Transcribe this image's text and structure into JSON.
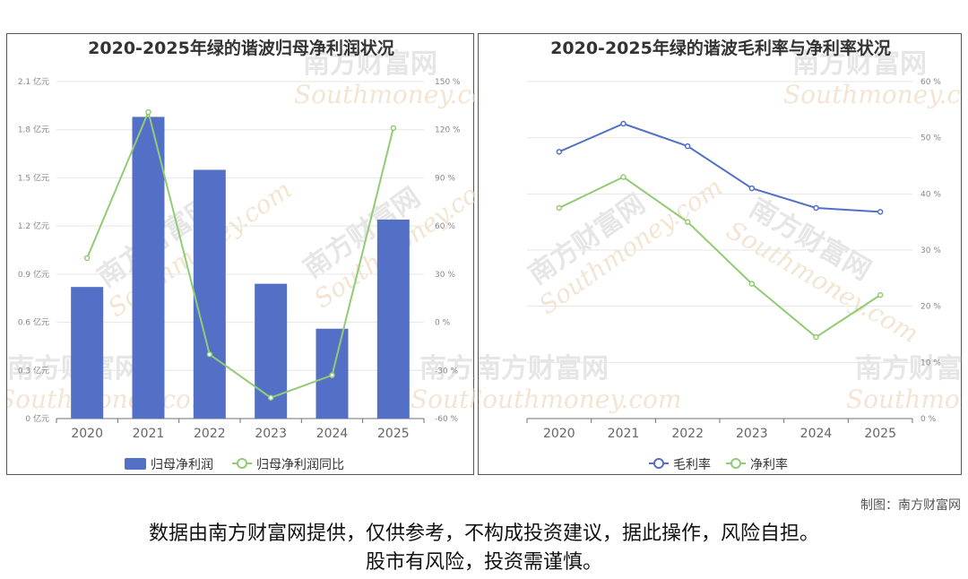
{
  "chart_data": [
    {
      "type": "bar",
      "title": "2020-2025年绿的谐波归母净利润状况",
      "categories": [
        "2020",
        "2021",
        "2022",
        "2023",
        "2024",
        "2025"
      ],
      "series": [
        {
          "name": "归母净利润",
          "values": [
            0.82,
            1.88,
            1.55,
            0.84,
            0.56,
            1.24
          ],
          "color": "#5470c6"
        },
        {
          "name": "归母净利润同比",
          "values": [
            40,
            131,
            -20,
            -47,
            -33,
            121
          ],
          "axis": "right",
          "type": "line",
          "color": "#91cc75"
        }
      ],
      "y_left": {
        "ticks": [
          "2.1 亿元",
          "1.8 亿元",
          "1.5 亿元",
          "1.2 亿元",
          "0.9 亿元",
          "0.6 亿元",
          "0.3 亿元",
          "0 亿元"
        ],
        "ylim": [
          0,
          2.1
        ]
      },
      "y_right": {
        "ticks": [
          "150 %",
          "120 %",
          "90 %",
          "60 %",
          "30 %",
          "0 %",
          "-30 %",
          "-60 %"
        ],
        "ylim": [
          -60,
          150
        ]
      },
      "legend_position": "bottom"
    },
    {
      "type": "line",
      "title": "2020-2025年绿的谐波毛利率与净利率状况",
      "categories": [
        "2020",
        "2021",
        "2022",
        "2023",
        "2024",
        "2025"
      ],
      "series": [
        {
          "name": "毛利率",
          "values": [
            47.5,
            52.5,
            48.5,
            41,
            37.5,
            36.8
          ],
          "color": "#5470c6"
        },
        {
          "name": "净利率",
          "values": [
            37.5,
            43,
            35,
            24,
            14.5,
            22
          ],
          "color": "#91cc75"
        }
      ],
      "y_right": {
        "ticks": [
          "60 %",
          "50 %",
          "40 %",
          "30 %",
          "20 %",
          "10 %",
          "0 %"
        ],
        "ylim": [
          0,
          60
        ]
      },
      "legend_position": "bottom"
    }
  ],
  "watermark": {
    "cn": "南方财富网",
    "en": "Southmoney.com"
  },
  "credit": "制图：南方财富网",
  "disclaimer": {
    "line1": "数据由南方财富网提供，仅供参考，不构成投资建议，据此操作，风险自担。",
    "line2": "股市有风险，投资需谨慎。"
  }
}
